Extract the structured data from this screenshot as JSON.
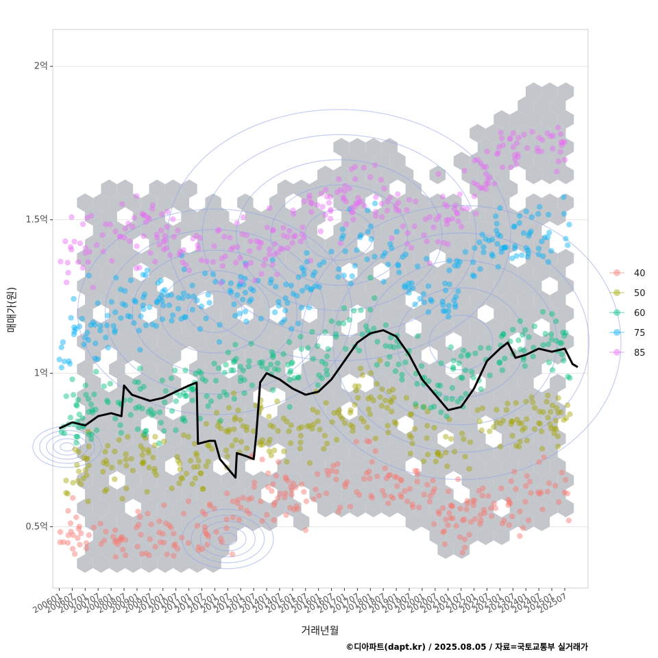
{
  "chart_data": {
    "type": "scatter",
    "xlabel": "거래년월",
    "ylabel": "매매가(원)",
    "caption": "©디아파트(dapt.kr) / 2025.08.05 / 자료=국토교통부 실거래가",
    "y_ticks": [
      {
        "value": 0.5,
        "label": "0.5억"
      },
      {
        "value": 1.0,
        "label": "1억"
      },
      {
        "value": 1.5,
        "label": "1.5억"
      },
      {
        "value": 2.0,
        "label": "2억"
      }
    ],
    "ylim": [
      0.3,
      2.12
    ],
    "xlim": [
      2005.75,
      2026.4
    ],
    "x_ticks": [
      "200601",
      "200607",
      "200701",
      "200707",
      "200801",
      "200807",
      "200901",
      "200907",
      "201001",
      "201007",
      "201101",
      "201107",
      "201201",
      "201207",
      "201301",
      "201307",
      "201401",
      "201407",
      "201501",
      "201507",
      "201601",
      "201607",
      "201701",
      "201707",
      "201801",
      "201807",
      "201901",
      "201907",
      "202001",
      "202007",
      "202101",
      "202107",
      "202201",
      "202207",
      "202301",
      "202307",
      "202401",
      "202407",
      "202501",
      "202507"
    ],
    "legend": [
      {
        "label": "40",
        "color": "#F8766D"
      },
      {
        "label": "50",
        "color": "#A3A500"
      },
      {
        "label": "60",
        "color": "#00BF7D"
      },
      {
        "label": "75",
        "color": "#00B0F6"
      },
      {
        "label": "85",
        "color": "#E76BF3"
      }
    ],
    "series": [
      {
        "name": "40",
        "center": [
          [
            2006.0,
            0.47
          ],
          [
            2008.0,
            0.45
          ],
          [
            2010.0,
            0.45
          ],
          [
            2011.5,
            0.48
          ],
          [
            2012.0,
            0.5
          ],
          [
            2013.5,
            0.62
          ],
          [
            2015.0,
            0.6
          ],
          [
            2016.5,
            0.64
          ],
          [
            2018.0,
            0.68
          ],
          [
            2019.0,
            0.65
          ],
          [
            2020.0,
            0.6
          ],
          [
            2021.0,
            0.5
          ],
          [
            2022.0,
            0.55
          ],
          [
            2023.0,
            0.58
          ],
          [
            2024.0,
            0.6
          ],
          [
            2025.5,
            0.62
          ]
        ]
      },
      {
        "name": "50",
        "center": [
          [
            2006.0,
            0.68
          ],
          [
            2008.0,
            0.7
          ],
          [
            2010.0,
            0.72
          ],
          [
            2011.5,
            0.7
          ],
          [
            2012.0,
            0.78
          ],
          [
            2013.5,
            0.82
          ],
          [
            2015.0,
            0.8
          ],
          [
            2016.5,
            0.85
          ],
          [
            2018.0,
            0.9
          ],
          [
            2019.0,
            0.88
          ],
          [
            2020.0,
            0.8
          ],
          [
            2021.0,
            0.72
          ],
          [
            2022.0,
            0.8
          ],
          [
            2023.0,
            0.82
          ],
          [
            2024.0,
            0.85
          ],
          [
            2025.5,
            0.85
          ]
        ]
      },
      {
        "name": "60",
        "center": [
          [
            2006.0,
            0.85
          ],
          [
            2008.0,
            0.9
          ],
          [
            2010.0,
            0.9
          ],
          [
            2011.5,
            0.95
          ],
          [
            2012.0,
            0.98
          ],
          [
            2013.5,
            1.0
          ],
          [
            2015.0,
            1.0
          ],
          [
            2016.5,
            1.1
          ],
          [
            2018.0,
            1.15
          ],
          [
            2019.0,
            1.05
          ],
          [
            2020.0,
            0.95
          ],
          [
            2021.0,
            0.95
          ],
          [
            2022.0,
            1.05
          ],
          [
            2023.0,
            1.08
          ],
          [
            2024.0,
            1.1
          ],
          [
            2025.5,
            1.12
          ]
        ]
      },
      {
        "name": "75",
        "center": [
          [
            2006.0,
            1.1
          ],
          [
            2008.0,
            1.2
          ],
          [
            2010.0,
            1.25
          ],
          [
            2011.5,
            1.25
          ],
          [
            2012.0,
            1.22
          ],
          [
            2013.5,
            1.25
          ],
          [
            2015.0,
            1.25
          ],
          [
            2016.5,
            1.4
          ],
          [
            2018.0,
            1.45
          ],
          [
            2019.0,
            1.35
          ],
          [
            2020.0,
            1.25
          ],
          [
            2021.0,
            1.25
          ],
          [
            2022.0,
            1.35
          ],
          [
            2023.0,
            1.45
          ],
          [
            2024.0,
            1.45
          ],
          [
            2025.5,
            1.45
          ]
        ]
      },
      {
        "name": "85",
        "center": [
          [
            2006.0,
            1.35
          ],
          [
            2008.0,
            1.45
          ],
          [
            2010.0,
            1.45
          ],
          [
            2011.5,
            1.42
          ],
          [
            2012.0,
            1.38
          ],
          [
            2013.5,
            1.4
          ],
          [
            2015.0,
            1.45
          ],
          [
            2016.5,
            1.55
          ],
          [
            2018.0,
            1.6
          ],
          [
            2019.0,
            1.55
          ],
          [
            2020.0,
            1.45
          ],
          [
            2021.0,
            1.5
          ],
          [
            2022.0,
            1.6
          ],
          [
            2023.0,
            1.7
          ],
          [
            2024.0,
            1.75
          ],
          [
            2025.5,
            1.75
          ]
        ]
      }
    ],
    "trend_line": [
      [
        2006.0,
        0.82
      ],
      [
        2006.5,
        0.84
      ],
      [
        2007.0,
        0.83
      ],
      [
        2007.5,
        0.86
      ],
      [
        2008.0,
        0.87
      ],
      [
        2008.4,
        0.86
      ],
      [
        2008.5,
        0.96
      ],
      [
        2008.8,
        0.93
      ],
      [
        2009.5,
        0.91
      ],
      [
        2010.0,
        0.92
      ],
      [
        2010.5,
        0.94
      ],
      [
        2011.0,
        0.96
      ],
      [
        2011.3,
        0.97
      ],
      [
        2011.35,
        0.77
      ],
      [
        2011.8,
        0.78
      ],
      [
        2012.0,
        0.78
      ],
      [
        2012.2,
        0.72
      ],
      [
        2012.5,
        0.69
      ],
      [
        2012.8,
        0.66
      ],
      [
        2012.85,
        0.74
      ],
      [
        2013.2,
        0.73
      ],
      [
        2013.5,
        0.72
      ],
      [
        2013.6,
        0.8
      ],
      [
        2013.75,
        0.97
      ],
      [
        2014.0,
        1.0
      ],
      [
        2014.5,
        0.98
      ],
      [
        2015.0,
        0.95
      ],
      [
        2015.5,
        0.93
      ],
      [
        2016.0,
        0.94
      ],
      [
        2016.5,
        0.98
      ],
      [
        2017.0,
        1.04
      ],
      [
        2017.5,
        1.1
      ],
      [
        2018.0,
        1.13
      ],
      [
        2018.5,
        1.14
      ],
      [
        2019.0,
        1.12
      ],
      [
        2019.5,
        1.06
      ],
      [
        2020.0,
        0.98
      ],
      [
        2020.5,
        0.93
      ],
      [
        2021.0,
        0.88
      ],
      [
        2021.5,
        0.89
      ],
      [
        2022.0,
        0.95
      ],
      [
        2022.5,
        1.04
      ],
      [
        2023.0,
        1.08
      ],
      [
        2023.3,
        1.1
      ],
      [
        2023.6,
        1.05
      ],
      [
        2024.0,
        1.06
      ],
      [
        2024.5,
        1.08
      ],
      [
        2025.0,
        1.07
      ],
      [
        2025.5,
        1.08
      ],
      [
        2025.8,
        1.03
      ],
      [
        2026.0,
        1.02
      ]
    ]
  }
}
